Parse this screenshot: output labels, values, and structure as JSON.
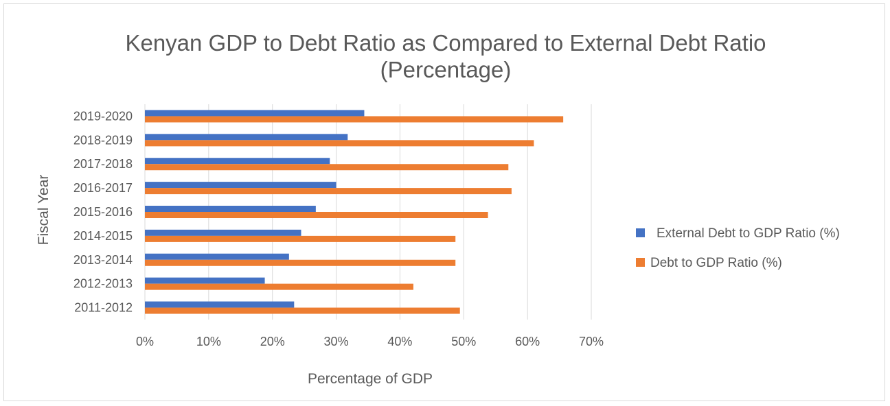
{
  "chart_data": {
    "type": "bar",
    "orientation": "horizontal",
    "title": "Kenyan GDP to Debt Ratio as Compared to External Debt Ratio",
    "subtitle": "(Percentage)",
    "xlabel": "Percentage of GDP",
    "ylabel": "Fiscal Year",
    "xlim": [
      0,
      70
    ],
    "x_ticks": [
      "0%",
      "10%",
      "20%",
      "30%",
      "40%",
      "50%",
      "60%",
      "70%"
    ],
    "grid": true,
    "legend_position": "right",
    "categories": [
      "2011-2012",
      "2012-2013",
      "2013-2014",
      "2014-2015",
      "2015-2016",
      "2016-2017",
      "2017-2018",
      "2018-2019",
      "2019-2020"
    ],
    "series": [
      {
        "name": "External Debt to GDP Ratio (%)",
        "color": "#4472c4",
        "values": [
          23.4,
          18.8,
          22.6,
          24.5,
          26.8,
          30.0,
          29.0,
          31.8,
          34.4
        ]
      },
      {
        "name": "Debt to GDP Ratio (%)",
        "color": "#ed7d31",
        "values": [
          49.4,
          42.1,
          48.7,
          48.7,
          53.8,
          57.5,
          57.0,
          61.0,
          65.6
        ]
      }
    ]
  }
}
